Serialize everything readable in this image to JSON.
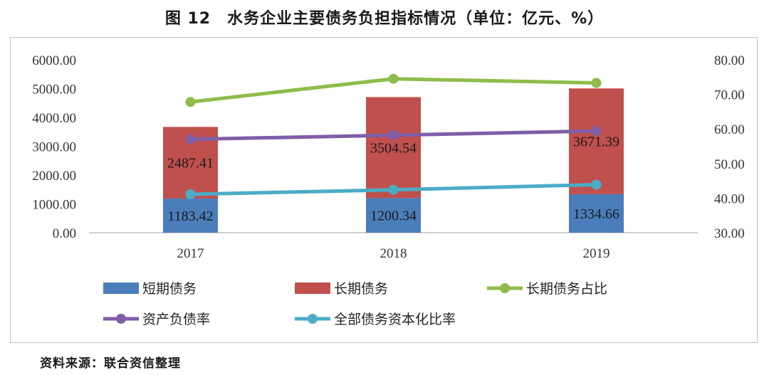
{
  "title": "图 12　水务企业主要债务负担指标情况（单位：亿元、%）",
  "source": "资料来源：联合资信整理",
  "chart_data": {
    "type": "bar",
    "categories": [
      "2017",
      "2018",
      "2019"
    ],
    "left_axis": {
      "ylim": [
        0,
        6000
      ],
      "ticks": [
        "0.00",
        "1000.00",
        "2000.00",
        "3000.00",
        "4000.00",
        "5000.00",
        "6000.00"
      ]
    },
    "right_axis": {
      "ylim": [
        30,
        80
      ],
      "ticks": [
        "30.00",
        "40.00",
        "50.00",
        "60.00",
        "70.00",
        "80.00"
      ]
    },
    "bar_series": [
      {
        "name": "短期债务",
        "color": "#4a7ebb",
        "values": [
          1183.42,
          1200.34,
          1334.66
        ],
        "labels": [
          "1183.42",
          "1200.34",
          "1334.66"
        ]
      },
      {
        "name": "长期债务",
        "color": "#c0504d",
        "values": [
          2487.41,
          3504.54,
          3671.39
        ],
        "labels": [
          "2487.41",
          "3504.54",
          "3671.39"
        ]
      }
    ],
    "line_series": [
      {
        "name": "长期债务占比",
        "color": "#8fbc4a",
        "axis": "right",
        "values": [
          67.8,
          74.5,
          73.3
        ]
      },
      {
        "name": "资产负债率",
        "color": "#7f5ea8",
        "axis": "right",
        "values": [
          57.0,
          58.2,
          59.4
        ]
      },
      {
        "name": "全部债务资本化比率",
        "color": "#4bacc6",
        "axis": "right",
        "values": [
          41.1,
          42.4,
          43.9
        ]
      }
    ],
    "legend_position": "bottom",
    "grid": false
  }
}
